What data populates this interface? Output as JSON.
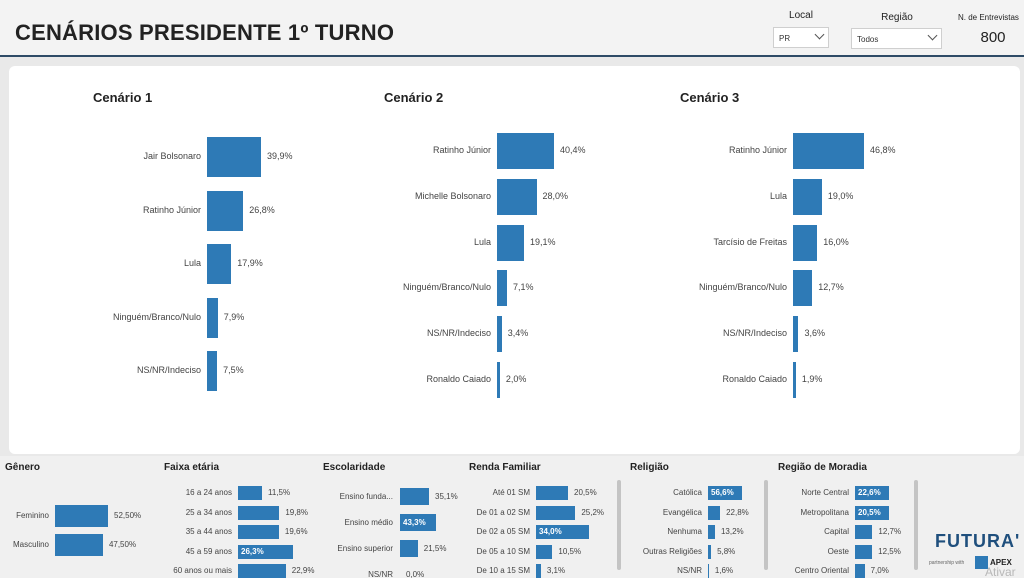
{
  "header": {
    "title": "CENÁRIOS PRESIDENTE 1º TURNO",
    "local_label": "Local",
    "local_value": "PR",
    "regiao_label": "Região",
    "regiao_value": "Todos",
    "count_label": "N. de Entrevistas",
    "count_value": "800"
  },
  "colors": {
    "bar": "#2e7ab6",
    "accent": "#1f4f7d"
  },
  "chart_data": [
    {
      "type": "bar",
      "title": "Cenário 1",
      "categories": [
        "Jair Bolsonaro",
        "Ratinho Júnior",
        "Lula",
        "Ninguém/Branco/Nulo",
        "NS/NR/Indeciso"
      ],
      "values": [
        39.9,
        26.8,
        17.9,
        7.9,
        7.5
      ],
      "labels": [
        "39,9%",
        "26,8%",
        "17,9%",
        "7,9%",
        "7,5%"
      ]
    },
    {
      "type": "bar",
      "title": "Cenário 2",
      "categories": [
        "Ratinho Júnior",
        "Michelle Bolsonaro",
        "Lula",
        "Ninguém/Branco/Nulo",
        "NS/NR/Indeciso",
        "Ronaldo Caiado"
      ],
      "values": [
        40.4,
        28.0,
        19.1,
        7.1,
        3.4,
        2.0
      ],
      "labels": [
        "40,4%",
        "28,0%",
        "19,1%",
        "7,1%",
        "3,4%",
        "2,0%"
      ]
    },
    {
      "type": "bar",
      "title": "Cenário 3",
      "categories": [
        "Ratinho Júnior",
        "Lula",
        "Tarcísio de Freitas",
        "Ninguém/Branco/Nulo",
        "NS/NR/Indeciso",
        "Ronaldo Caiado"
      ],
      "values": [
        46.8,
        19.0,
        16.0,
        12.7,
        3.6,
        1.9
      ],
      "labels": [
        "46,8%",
        "19,0%",
        "16,0%",
        "12,7%",
        "3,6%",
        "1,9%"
      ]
    },
    {
      "type": "bar",
      "title": "Gênero",
      "categories": [
        "Feminino",
        "Masculino"
      ],
      "values": [
        52.5,
        47.5
      ],
      "labels": [
        "52,50%",
        "47,50%"
      ]
    },
    {
      "type": "bar",
      "title": "Faixa etária",
      "categories": [
        "16 a 24 anos",
        "25 a 34 anos",
        "35 a 44 anos",
        "45 a 59 anos",
        "60 anos ou mais"
      ],
      "values": [
        11.5,
        19.8,
        19.6,
        26.3,
        22.9
      ],
      "labels": [
        "11,5%",
        "19,8%",
        "19,6%",
        "26,3%",
        "22,9%"
      ]
    },
    {
      "type": "bar",
      "title": "Escolaridade",
      "categories": [
        "Ensino funda...",
        "Ensino médio",
        "Ensino superior",
        "NS/NR"
      ],
      "values": [
        35.1,
        43.3,
        21.5,
        0.0
      ],
      "labels": [
        "35,1%",
        "43,3%",
        "21,5%",
        "0,0%"
      ]
    },
    {
      "type": "bar",
      "title": "Renda Familiar",
      "categories": [
        "Até 01 SM",
        "De 01 a 02 SM",
        "De 02 a 05 SM",
        "De 05 a 10 SM",
        "De 10 a 15 SM"
      ],
      "values": [
        20.5,
        25.2,
        34.0,
        10.5,
        3.1
      ],
      "labels": [
        "20,5%",
        "25,2%",
        "34,0%",
        "10,5%",
        "3,1%"
      ]
    },
    {
      "type": "bar",
      "title": "Religião",
      "categories": [
        "Católica",
        "Evangélica",
        "Nenhuma",
        "Outras Religiões",
        "NS/NR"
      ],
      "values": [
        56.6,
        22.8,
        13.2,
        5.8,
        1.6
      ],
      "labels": [
        "56,6%",
        "22,8%",
        "13,2%",
        "5,8%",
        "1,6%"
      ]
    },
    {
      "type": "bar",
      "title": "Região de Moradia",
      "categories": [
        "Norte Central",
        "Metropolitana",
        "Capital",
        "Oeste",
        "Centro Oriental"
      ],
      "values": [
        22.6,
        20.5,
        12.7,
        12.5,
        7.0
      ],
      "labels": [
        "22,6%",
        "20,5%",
        "12,7%",
        "12,5%",
        "7,0%"
      ]
    }
  ],
  "footer": {
    "logo": "FUTURA'",
    "partner": "partnership with",
    "apex": "APEX",
    "watermark": "Ativar o"
  }
}
